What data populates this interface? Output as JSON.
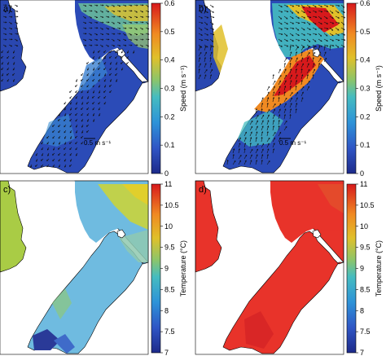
{
  "chart_data": [
    {
      "type": "heatmap",
      "panel_label": "a)",
      "quantity": "speed",
      "colorbar": {
        "label": "Speed (m s⁻¹)",
        "ticks": [
          "0",
          "0.1",
          "0.2",
          "0.3",
          "0.4",
          "0.5",
          "0.6"
        ],
        "range": [
          0,
          0.6
        ]
      },
      "scale_vector_label": "0.5 m s⁻¹",
      "vectors": true,
      "summary": "Low speeds (~0.05-0.15) throughout the channel; moderate speeds (~0.3-0.45) in the upper basin."
    },
    {
      "type": "heatmap",
      "panel_label": "b)",
      "quantity": "speed",
      "colorbar": {
        "label": "Speed (m s⁻¹)",
        "ticks": [
          "0",
          "0.1",
          "0.2",
          "0.3",
          "0.4",
          "0.5",
          "0.6"
        ],
        "range": [
          0,
          0.6
        ]
      },
      "scale_vector_label": "0.5 m s⁻¹",
      "vectors": true,
      "summary": "High-speed jet (~0.5-0.6) along the central channel and upper basin; lower speeds near the southern end."
    },
    {
      "type": "heatmap",
      "panel_label": "c)",
      "quantity": "temperature",
      "colorbar": {
        "label": "Temperature (°C)",
        "ticks": [
          "7",
          "7.5",
          "8",
          "8.5",
          "9",
          "9.5",
          "10",
          "10.5",
          "11"
        ],
        "range": [
          7,
          11
        ]
      },
      "vectors": false,
      "summary": "Cool water (~8.2-8.6 °C) in the channel, warmer (~9-9.5 °C) in the upper right, coldest (~7 °C) near the southern tip."
    },
    {
      "type": "heatmap",
      "panel_label": "d)",
      "quantity": "temperature",
      "colorbar": {
        "label": "Temperature (°C)",
        "ticks": [
          "7",
          "7.5",
          "8",
          "8.5",
          "9",
          "9.5",
          "10",
          "10.5",
          "11"
        ],
        "range": [
          7,
          11
        ]
      },
      "vectors": false,
      "summary": "Uniformly warm water (~10.6-11 °C) throughout the domain."
    }
  ]
}
